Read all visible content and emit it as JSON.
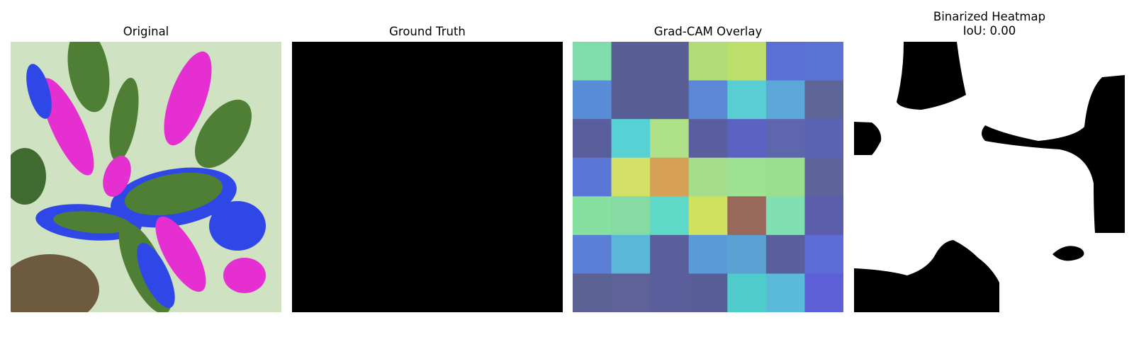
{
  "panels": {
    "original": {
      "title": "Original"
    },
    "ground_truth": {
      "title": "Ground Truth"
    },
    "gradcam": {
      "title": "Grad-CAM Overlay",
      "grid": [
        [
          "#7fdcab",
          "#5a5e97",
          "#5a5e97",
          "#b0dd78",
          "#bcdf6c",
          "#5b6fd6",
          "#5b73d4"
        ],
        [
          "#5a8dd8",
          "#5a5e97",
          "#5a5e97",
          "#5a88d6",
          "#58cdd3",
          "#5ba8d8",
          "#5d6599"
        ],
        [
          "#5a5e9c",
          "#58d1d4",
          "#aee188",
          "#5a5e9e",
          "#5b62c2",
          "#5e66ad",
          "#5a63b4"
        ],
        [
          "#5a76d6",
          "#d3df66",
          "#d6a156",
          "#a5dd8a",
          "#9de193",
          "#9ade90",
          "#5e6499"
        ],
        [
          "#86e0a0",
          "#86dba2",
          "#5ed9c7",
          "#d0e160",
          "#98695b",
          "#80e0b2",
          "#5a5eaa"
        ],
        [
          "#5a7fd7",
          "#5cb6d8",
          "#5a5e9b",
          "#5a9ad8",
          "#5ba1d3",
          "#5a5e9a",
          "#5c6bd6"
        ],
        [
          "#5d6294",
          "#5f6299",
          "#5a5e9a",
          "#5a5e98",
          "#4fcbcb",
          "#5bbad9",
          "#5c5fd6"
        ]
      ]
    },
    "binarized": {
      "title": "Binarized Heatmap\nIoU: 0.00"
    }
  },
  "colors": {
    "leaf_green": "#4f7f35",
    "pale_green": "#cfe3c3",
    "magenta": "#e62fd0",
    "blue": "#2f47e6",
    "brown": "#6d5a3f"
  }
}
